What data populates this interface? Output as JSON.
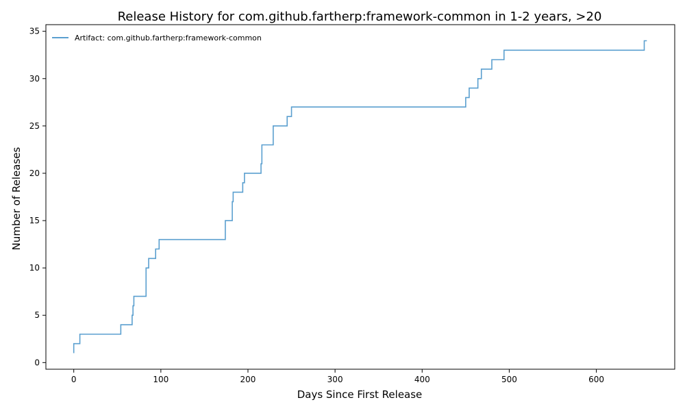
{
  "chart_data": {
    "type": "line",
    "title": "Release History for com.github.fartherp:framework-common in 1-2 years, >20",
    "xlabel": "Days Since First Release",
    "ylabel": "Number of Releases",
    "xlim": [
      -32,
      690
    ],
    "ylim": [
      -0.7,
      35.7
    ],
    "xticks": [
      0,
      100,
      200,
      300,
      400,
      500,
      600
    ],
    "yticks": [
      0,
      5,
      10,
      15,
      20,
      25,
      30,
      35
    ],
    "grid": false,
    "legend_position": "top-left",
    "step": "post",
    "series": [
      {
        "name": "Artifact: com.github.fartherp:framework-common",
        "color": "#5a9fcf",
        "x": [
          0,
          0,
          7,
          54,
          67,
          68,
          69,
          70,
          83,
          84,
          86,
          94,
          98,
          174,
          182,
          182.5,
          183,
          194,
          195,
          196,
          215,
          215.5,
          216,
          229,
          245,
          250,
          450,
          451,
          454,
          464,
          468,
          480,
          494,
          655,
          658
        ],
        "y": [
          1,
          2,
          3,
          4,
          5,
          6,
          7,
          7,
          10,
          10,
          11,
          12,
          13,
          15,
          17,
          17,
          18,
          19,
          19,
          20,
          21,
          21,
          23,
          25,
          26,
          27,
          28,
          28,
          29,
          30,
          31,
          32,
          33,
          34,
          34
        ]
      }
    ]
  }
}
